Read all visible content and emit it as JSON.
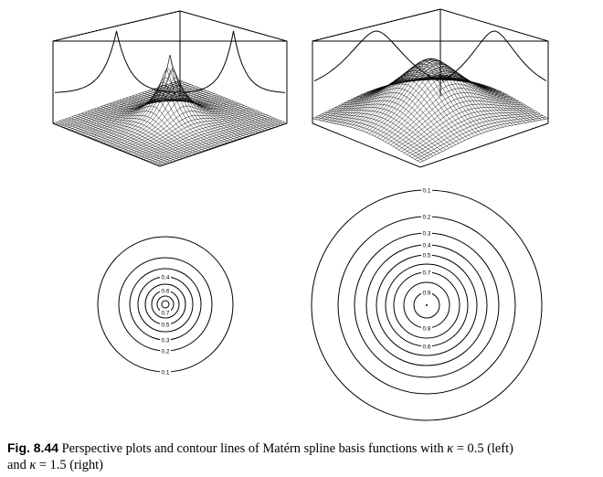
{
  "figure": {
    "panels": [
      {
        "id": "left",
        "kappa": "0.5",
        "contour_labels": [
          "0.1",
          "0.2",
          "0.3",
          "0.4",
          "0.5",
          "0.6",
          "0.7"
        ]
      },
      {
        "id": "right",
        "kappa": "1.5",
        "contour_labels": [
          "0.1",
          "0.2",
          "0.3",
          "0.4",
          "0.5",
          "0.6",
          "0.7",
          "0.8",
          "0.9"
        ]
      }
    ]
  },
  "caption": {
    "label": "Fig. 8.44",
    "text_part1": "Perspective plots and contour lines of Matérn spline basis functions with ",
    "kappa_symbol": "κ",
    "eq1": " = 0.5 (left)",
    "text_part2": "and ",
    "eq2": " = 1.5 (right)"
  }
}
